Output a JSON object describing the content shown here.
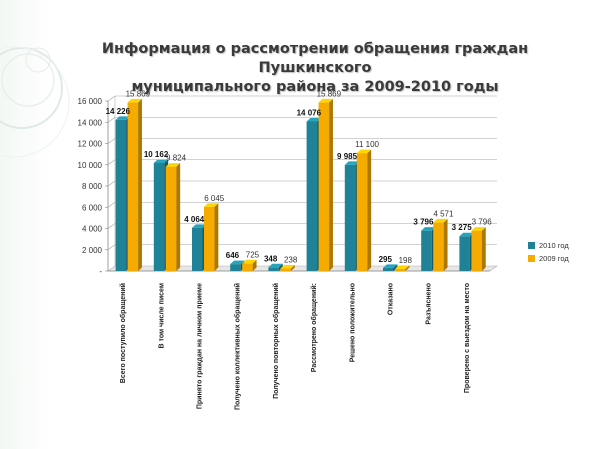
{
  "slide": {
    "title_line1": "Информация о рассмотрении обращения граждан Пушкинского",
    "title_line2": "муниципального района за 2009-2010 годы"
  },
  "colors": {
    "series_2010": "#1f8296",
    "series_2009": "#f5ab00",
    "axis": "#888888",
    "gridline": "#a6a6a6"
  },
  "chart_data": {
    "type": "bar",
    "title": "",
    "xlabel": "",
    "ylabel": "",
    "ylim": [
      0,
      16000
    ],
    "yticks": [
      0,
      2000,
      4000,
      6000,
      8000,
      10000,
      12000,
      14000,
      16000
    ],
    "ytick_labels": [
      "-",
      "2 000",
      "4 000",
      "6 000",
      "8 000",
      "10 000",
      "12 000",
      "14 000",
      "16 000"
    ],
    "grid": true,
    "legend_position": "right",
    "categories": [
      "Всего поступило обращений",
      "В том числе писем",
      "Принято граждан на личном приеме",
      "Получено коллективных обращений",
      "Получено повторных обращений",
      "Рассмотрено обращений:",
      "Решено положительно",
      "Отказано",
      "Разъяснено",
      "Проверено с выездом на место"
    ],
    "series": [
      {
        "name": "2010 год",
        "values": [
          14226,
          10162,
          4064,
          646,
          348,
          14076,
          9985,
          295,
          3796,
          3275
        ],
        "labels": [
          "14 226",
          "10 162",
          "4 064",
          "646",
          "348",
          "14 076",
          "9 985",
          "295",
          "3 796",
          "3 275"
        ]
      },
      {
        "name": "2009 год",
        "values": [
          15869,
          9824,
          6045,
          725,
          238,
          15869,
          11100,
          198,
          4571,
          3796
        ],
        "labels": [
          "15 869",
          "9 824",
          "6 045",
          "725",
          "238",
          "15 869",
          "11 100",
          "198",
          "4 571",
          "3 796"
        ]
      }
    ]
  }
}
